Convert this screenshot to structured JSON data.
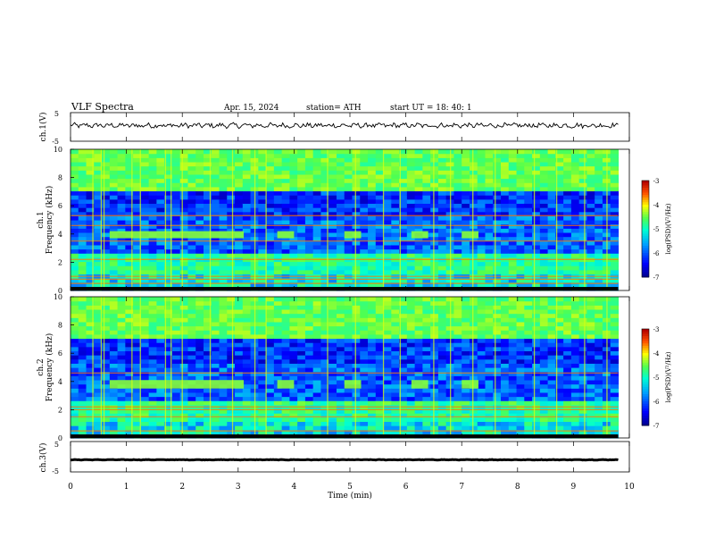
{
  "header": {
    "title": "VLF  Spectra",
    "date": "Apr. 15, 2024",
    "station": "station= ATH",
    "start": "start  UT  =    18: 40: 1"
  },
  "chart_data": [
    {
      "type": "line",
      "name": "ch1-waveform",
      "ylabel": "ch.1(V)",
      "ylim": [
        -5,
        5
      ],
      "yticks": [
        "5",
        "-5"
      ],
      "x_range_min": [
        0,
        9.8
      ],
      "baseline_v": 0.5,
      "amplitude_v": 1.5,
      "color": "#000000"
    },
    {
      "type": "heatmap",
      "name": "ch1-spectrogram",
      "ylabel": "ch.1",
      "ylabel2": "Frequency  (kHz)",
      "ylim": [
        0,
        10
      ],
      "yticks": [
        "0",
        "2",
        "4",
        "6",
        "8",
        "10"
      ],
      "x_range_min": [
        0,
        9.8
      ],
      "colorbar": {
        "label": "log(PSD)(V²/Hz)",
        "ticks": [
          "-3",
          "-4",
          "-5",
          "-6",
          "-7"
        ],
        "range": [
          -7,
          -3
        ]
      },
      "tone_band_khz": [
        3.7,
        4.2
      ],
      "tone_bursts_min": [
        [
          0.7,
          3.1
        ],
        [
          3.7,
          4.0
        ],
        [
          4.9,
          5.2
        ],
        [
          6.1,
          6.4
        ],
        [
          7.0,
          7.3
        ]
      ],
      "horizontal_lines_khz": [
        0.5,
        0.8,
        1.0,
        2.2,
        3.5,
        4.6,
        5.3
      ],
      "sferic_times_min": [
        0.4,
        0.55,
        0.6,
        1.1,
        1.25,
        1.7,
        1.8,
        2.0,
        2.5,
        2.9,
        3.3,
        3.5,
        4.6,
        5.1,
        5.6,
        5.9,
        6.5,
        6.8,
        7.2,
        7.6,
        8.3,
        8.7,
        9.2,
        9.6
      ]
    },
    {
      "type": "heatmap",
      "name": "ch2-spectrogram",
      "ylabel": "ch.2",
      "ylabel2": "Frequency  (kHz)",
      "ylim": [
        0,
        10
      ],
      "yticks": [
        "0",
        "2",
        "4",
        "6",
        "8",
        "10"
      ],
      "x_range_min": [
        0,
        9.8
      ],
      "colorbar": {
        "label": "log(PSD)(V²/Hz)",
        "ticks": [
          "-3",
          "-4",
          "-5",
          "-6",
          "-7"
        ],
        "range": [
          -7,
          -3
        ]
      },
      "tone_band_khz": [
        3.5,
        4.1
      ],
      "tone_bursts_min": [
        [
          0.7,
          3.1
        ],
        [
          3.7,
          4.0
        ],
        [
          4.9,
          5.2
        ],
        [
          6.1,
          6.4
        ],
        [
          7.0,
          7.3
        ]
      ],
      "horizontal_lines_khz": [
        0.5,
        1.5,
        2.0,
        2.2,
        4.6
      ],
      "sferic_times_min": [
        0.4,
        0.55,
        0.6,
        1.1,
        1.25,
        1.7,
        1.8,
        2.0,
        2.5,
        2.9,
        3.3,
        3.5,
        4.6,
        5.1,
        5.6,
        5.9,
        6.5,
        6.8,
        7.2,
        7.6,
        8.3,
        8.7,
        9.2,
        9.6
      ]
    },
    {
      "type": "line",
      "name": "ch3-waveform",
      "ylabel": "ch.3(V)",
      "ylim": [
        -5,
        5
      ],
      "yticks": [
        "5",
        "-5"
      ],
      "x_range_min": [
        0,
        9.8
      ],
      "baseline_v": -1.0,
      "amplitude_v": 0.15,
      "color": "#000000"
    }
  ],
  "x_axis": {
    "label": "Time  (min)",
    "range": [
      0,
      10
    ],
    "ticks": [
      "0",
      "1",
      "2",
      "3",
      "4",
      "5",
      "6",
      "7",
      "8",
      "9",
      "10"
    ]
  }
}
